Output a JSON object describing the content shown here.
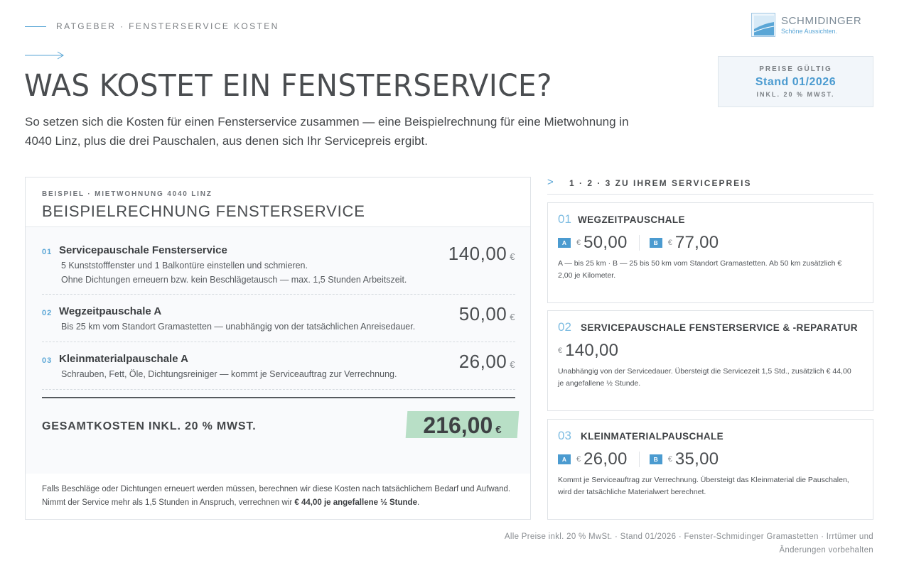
{
  "header": {
    "breadcrumb": "RATGEBER · FENSTERSERVICE KOSTEN",
    "title": "WAS KOSTET EIN FENSTERSERVICE?",
    "intro": "So setzen sich die Kosten für einen Fensterservice zusammen — eine Beispielrechnung für eine Mietwohnung in 4040 Linz, plus die drei Pauschalen, aus denen sich Ihr Servicepreis ergibt."
  },
  "logo": {
    "brand": "SCHMIDINGER",
    "tagline": "Schöne Aussichten."
  },
  "validity": {
    "label": "PREISE GÜLTIG",
    "date": "Stand 01/2026",
    "tax": "INKL. 20 % MWST."
  },
  "example": {
    "kicker": "BEISPIEL · MIETWOHNUNG 4040 LINZ",
    "title": "BEISPIELRECHNUNG FENSTERSERVICE",
    "items": [
      {
        "num": "01",
        "name": "Servicepauschale Fensterservice",
        "desc1": "5 Kunststofffenster und 1 Balkontüre einstellen und schmieren.",
        "desc2": "Ohne Dichtungen erneuern bzw. kein Beschlägetausch — max. 1,5 Stunden Arbeitszeit.",
        "price": "140,00",
        "currency": "€"
      },
      {
        "num": "02",
        "name": "Wegzeitpauschale A",
        "desc1": "Bis 25 km vom Standort Gramastetten — unabhängig von der tatsächlichen Anreisedauer.",
        "desc2": "",
        "price": "50,00",
        "currency": "€"
      },
      {
        "num": "03",
        "name": "Kleinmaterialpauschale A",
        "desc1": "Schrauben, Fett, Öle, Dichtungsreiniger — kommt je Serviceauftrag zur Verrechnung.",
        "desc2": "",
        "price": "26,00",
        "currency": "€"
      }
    ],
    "total_label": "GESAMTKOSTEN INKL. 20 % MWST.",
    "total_value": "216,00",
    "total_currency": "€",
    "note_text": "Falls Beschläge oder Dichtungen erneuert werden müssen, berechnen wir diese Kosten nach tatsächlichem Bedarf und Aufwand. Nimmt der Service mehr als 1,5 Stunden in Anspruch, verrechnen wir ",
    "note_bold": "€ 44,00 je angefallene ½ Stunde",
    "note_end": "."
  },
  "pricing": {
    "heading": "1 · 2 · 3 ZU IHREM SERVICEPREIS",
    "cards": [
      {
        "num": "01",
        "title": "WEGZEITPAUSCHALE",
        "a_label": "A",
        "a_value": "50,00",
        "b_label": "B",
        "b_value": "77,00",
        "currency": "€",
        "desc": "A — bis 25 km · B — 25 bis 50 km vom Standort Gramastetten. Ab 50 km zusätzlich € 2,00 je Kilometer."
      },
      {
        "num": "02",
        "title": "SERVICEPAUSCHALE FENSTERSERVICE & -REPARATUR",
        "value": "140,00",
        "currency": "€",
        "desc": "Unabhängig von der Servicedauer. Übersteigt die Servicezeit 1,5 Std., zusätzlich € 44,00 je angefallene ½ Stunde."
      },
      {
        "num": "03",
        "title": "KLEINMATERIALPAUSCHALE",
        "a_label": "A",
        "a_value": "26,00",
        "b_label": "B",
        "b_value": "35,00",
        "currency": "€",
        "desc": "Kommt je Serviceauftrag zur Verrechnung. Übersteigt das Kleinmaterial die Pauschalen, wird der tatsächliche Materialwert berechnet."
      }
    ]
  },
  "footer": {
    "line1": "Alle Preise inkl. 20 % MwSt. · Stand 01/2026 · Fenster-Schmidinger Gramastetten · Irrtümer und",
    "line2": "Änderungen vorbehalten"
  }
}
